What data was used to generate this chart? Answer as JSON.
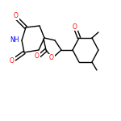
{
  "background_color": "#ffffff",
  "bond_color": "#000000",
  "atom_colors": {
    "O": "#ff0000",
    "N": "#0000ff",
    "C": "#000000"
  },
  "figsize": [
    1.5,
    1.5
  ],
  "dpi": 100
}
